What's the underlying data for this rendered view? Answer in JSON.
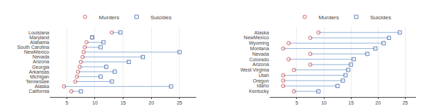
{
  "chart_data": [
    {
      "type": "dumbbell",
      "orientation": "horizontal",
      "color": "#90b0d8",
      "categories": [
        "Louisiana",
        "Maryland",
        "Alabama",
        "South Carolina",
        "NewMexico",
        "Nevada",
        "Arizona",
        "Georgia",
        "Arkansas",
        "Michigan",
        "Tennessee",
        "Alaska",
        "California"
      ],
      "series": [
        {
          "name": "Murders",
          "color": "#d06060",
          "marker": "circle-open",
          "values": [
            13.0,
            9.5,
            8.5,
            8.2,
            8.0,
            7.8,
            7.5,
            7.3,
            7.0,
            6.8,
            6.5,
            4.5,
            5.8
          ]
        },
        {
          "name": "Suicides",
          "color": "#6080b8",
          "marker": "square-open",
          "values": [
            14.5,
            9.5,
            11.5,
            11.0,
            25.0,
            18.5,
            16.0,
            12.0,
            13.5,
            11.0,
            13.0,
            23.5,
            7.5
          ]
        }
      ],
      "xlim": [
        2,
        28
      ],
      "xticks": [
        5,
        10,
        15,
        20,
        25
      ],
      "grid": true,
      "legend": "top"
    },
    {
      "type": "dumbbell",
      "orientation": "horizontal",
      "color": "#90b0d8",
      "categories": [
        "Alaska",
        "NewMexico",
        "Wyoming",
        "Montana",
        "Nevada",
        "Colorado",
        "Arizona",
        "West Virginia",
        "Utah",
        "Oregon",
        "Idaho",
        "Kentucky"
      ],
      "series": [
        {
          "name": "Murders",
          "color": "#d06060",
          "marker": "circle-open",
          "values": [
            9.0,
            7.5,
            3.5,
            2.5,
            7.5,
            3.5,
            7.5,
            4.5,
            2.5,
            2.5,
            2.5,
            4.5
          ]
        },
        {
          "name": "Suicides",
          "color": "#6080b8",
          "marker": "square-open",
          "values": [
            24.0,
            22.0,
            21.0,
            19.5,
            18.0,
            15.5,
            15.0,
            14.5,
            14.0,
            13.5,
            12.5,
            9.0
          ]
        }
      ],
      "xlim": [
        0,
        27
      ],
      "xticks": [
        5,
        10,
        15,
        20,
        25
      ],
      "grid": true,
      "legend": "top"
    }
  ]
}
